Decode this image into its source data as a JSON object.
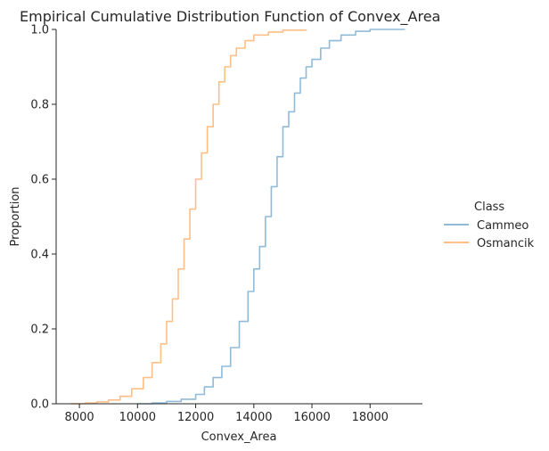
{
  "chart_data": {
    "type": "line",
    "title": "Empirical Cumulative Distribution Function of Convex_Area",
    "xlabel": "Convex_Area",
    "ylabel": "Proportion",
    "xlim": [
      7200,
      19800
    ],
    "ylim": [
      0,
      1
    ],
    "xticks": [
      8000,
      10000,
      12000,
      14000,
      16000,
      18000
    ],
    "xtick_labels": [
      "8000",
      "10000",
      "12000",
      "14000",
      "16000",
      "18000"
    ],
    "yticks": [
      0,
      0.2,
      0.4,
      0.6,
      0.8,
      1.0
    ],
    "ytick_labels": [
      "0.0",
      "0.2",
      "0.4",
      "0.6",
      "0.8",
      "1.0"
    ],
    "legend": {
      "title": "Class",
      "placement": "right-outside",
      "entries": [
        "Cammeo",
        "Osmancik"
      ]
    },
    "series": [
      {
        "name": "Cammeo",
        "color": "#8fbbd9",
        "points": [
          [
            10000,
            0.0
          ],
          [
            10500,
            0.002
          ],
          [
            11000,
            0.006
          ],
          [
            11500,
            0.012
          ],
          [
            12000,
            0.025
          ],
          [
            12300,
            0.045
          ],
          [
            12600,
            0.07
          ],
          [
            12900,
            0.1
          ],
          [
            13200,
            0.15
          ],
          [
            13500,
            0.22
          ],
          [
            13800,
            0.3
          ],
          [
            14000,
            0.36
          ],
          [
            14200,
            0.42
          ],
          [
            14400,
            0.5
          ],
          [
            14600,
            0.58
          ],
          [
            14800,
            0.66
          ],
          [
            15000,
            0.74
          ],
          [
            15200,
            0.78
          ],
          [
            15400,
            0.83
          ],
          [
            15600,
            0.87
          ],
          [
            15800,
            0.9
          ],
          [
            16000,
            0.92
          ],
          [
            16300,
            0.95
          ],
          [
            16600,
            0.97
          ],
          [
            17000,
            0.985
          ],
          [
            17500,
            0.995
          ],
          [
            18000,
            1.0
          ],
          [
            19200,
            1.0
          ]
        ]
      },
      {
        "name": "Osmancik",
        "color": "#ffbf86",
        "points": [
          [
            7700,
            0.0
          ],
          [
            8200,
            0.002
          ],
          [
            8600,
            0.005
          ],
          [
            9000,
            0.01
          ],
          [
            9400,
            0.02
          ],
          [
            9800,
            0.04
          ],
          [
            10200,
            0.07
          ],
          [
            10500,
            0.11
          ],
          [
            10800,
            0.16
          ],
          [
            11000,
            0.22
          ],
          [
            11200,
            0.28
          ],
          [
            11400,
            0.36
          ],
          [
            11600,
            0.44
          ],
          [
            11800,
            0.52
          ],
          [
            12000,
            0.6
          ],
          [
            12200,
            0.67
          ],
          [
            12400,
            0.74
          ],
          [
            12600,
            0.8
          ],
          [
            12800,
            0.86
          ],
          [
            13000,
            0.9
          ],
          [
            13200,
            0.93
          ],
          [
            13400,
            0.95
          ],
          [
            13700,
            0.97
          ],
          [
            14000,
            0.985
          ],
          [
            14500,
            0.993
          ],
          [
            15000,
            0.998
          ],
          [
            15800,
            1.0
          ]
        ]
      }
    ]
  }
}
